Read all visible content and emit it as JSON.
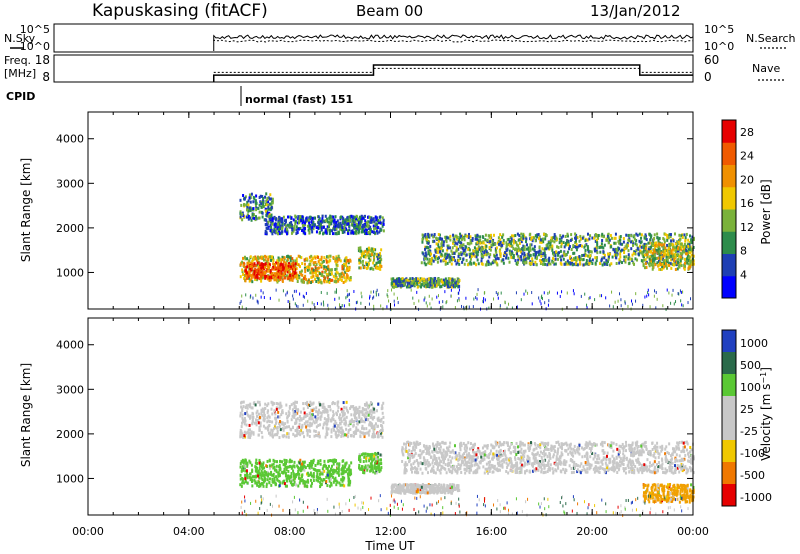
{
  "header": {
    "station": "Kapuskasing (fitACF)",
    "beam": "Beam 00",
    "date": "13/Jan/2012"
  },
  "summary_panels": {
    "nsky_label": "N.Sky",
    "nsky_ticks": [
      "10^5",
      "10^0"
    ],
    "nsearch_label": "N.Search",
    "nsearch_ticks": [
      "10^5",
      "10^0"
    ],
    "freq_label_1": "Freq.",
    "freq_label_2": "[MHz]",
    "freq_ticks": [
      "18",
      "8"
    ],
    "nave_label": "Nave",
    "nave_ticks": [
      "60",
      "0"
    ],
    "cpid_label": "CPID",
    "cpid_value": "normal (fast) 151",
    "freq_steps": [
      {
        "t": 6.0,
        "freq": 10.2
      },
      {
        "t": 12.0,
        "freq": 14.8
      },
      {
        "t": 22.0,
        "freq": 10.2
      },
      {
        "t": 24.0,
        "freq": 10.2
      }
    ],
    "nave_steps": [
      {
        "t": 6.0,
        "nave": 24
      },
      {
        "t": 12.0,
        "nave": 34
      },
      {
        "t": 22.0,
        "nave": 24
      },
      {
        "t": 24.0,
        "nave": 24
      }
    ]
  },
  "chart_data": [
    {
      "type": "heatmap",
      "name": "power",
      "xlabel": "Time UT",
      "ylabel": "Slant Range [km]",
      "x_ticks": [
        "00:00",
        "04:00",
        "08:00",
        "12:00",
        "16:00",
        "20:00",
        "00:00"
      ],
      "x_tick_values": [
        0,
        4,
        8,
        12,
        16,
        20,
        24
      ],
      "y_ticks": [
        "1000",
        "2000",
        "3000",
        "4000"
      ],
      "y_tick_values": [
        1000,
        2000,
        3000,
        4000
      ],
      "xlim": [
        0,
        24
      ],
      "ylim": [
        180,
        4600
      ],
      "colorbar_label": "Power [dB]",
      "colorbar_ticks": [
        "4",
        "8",
        "12",
        "16",
        "20",
        "24",
        "28"
      ],
      "colorbar_values": [
        4,
        8,
        12,
        16,
        20,
        24,
        28
      ],
      "colorbar_range": [
        0,
        30
      ],
      "bands": [
        {
          "t0": 6.0,
          "t1": 7.3,
          "r0": 2200,
          "r1": 2800,
          "level": 0.3
        },
        {
          "t0": 7.0,
          "t1": 11.7,
          "r0": 1900,
          "r1": 2300,
          "level": 0.25
        },
        {
          "t0": 6.0,
          "t1": 10.4,
          "r0": 800,
          "r1": 1400,
          "level": 0.55
        },
        {
          "t0": 6.2,
          "t1": 8.2,
          "r0": 900,
          "r1": 1250,
          "level": 0.85
        },
        {
          "t0": 10.7,
          "t1": 11.6,
          "r0": 1100,
          "r1": 1600,
          "level": 0.45
        },
        {
          "t0": 12.0,
          "t1": 14.7,
          "r0": 700,
          "r1": 900,
          "level": 0.35
        },
        {
          "t0": 13.2,
          "t1": 24.0,
          "r0": 1200,
          "r1": 1900,
          "level": 0.35
        },
        {
          "t0": 22.0,
          "t1": 24.0,
          "r0": 1100,
          "r1": 1700,
          "level": 0.5
        }
      ]
    },
    {
      "type": "heatmap",
      "name": "velocity",
      "xlabel": "Time UT",
      "ylabel": "Slant Range [km]",
      "x_ticks": [
        "00:00",
        "04:00",
        "08:00",
        "12:00",
        "16:00",
        "20:00",
        "00:00"
      ],
      "x_tick_values": [
        0,
        4,
        8,
        12,
        16,
        20,
        24
      ],
      "y_ticks": [
        "1000",
        "2000",
        "3000",
        "4000"
      ],
      "y_tick_values": [
        1000,
        2000,
        3000,
        4000
      ],
      "xlim": [
        0,
        24
      ],
      "ylim": [
        180,
        4600
      ],
      "colorbar_label": "Velocity [m s^-1]",
      "colorbar_ticks": [
        "1000",
        "500",
        "100",
        "25",
        "-25",
        "-100",
        "-500",
        "-1000"
      ],
      "bands": [
        {
          "t0": 6.0,
          "t1": 11.7,
          "r0": 1950,
          "r1": 2750,
          "color": "#c8c8c8"
        },
        {
          "t0": 12.4,
          "t1": 24.0,
          "r0": 1150,
          "r1": 1850,
          "color": "#c8c8c8"
        },
        {
          "t0": 6.0,
          "t1": 10.4,
          "r0": 850,
          "r1": 1450,
          "color": "#5ac834"
        },
        {
          "t0": 10.7,
          "t1": 11.6,
          "r0": 1150,
          "r1": 1600,
          "color": "#5ac834"
        },
        {
          "t0": 12.0,
          "t1": 14.7,
          "r0": 700,
          "r1": 900,
          "color": "#c8c8c8"
        },
        {
          "t0": 22.0,
          "t1": 24.0,
          "r0": 500,
          "r1": 900,
          "color": "#f0a000"
        }
      ]
    }
  ],
  "colors": {
    "power_scale": [
      "#0000ff",
      "#1e3fb4",
      "#2d8c4b",
      "#7ab23a",
      "#f0c800",
      "#f09000",
      "#f05a00",
      "#e60000"
    ],
    "velocity_scale": [
      "#2040c0",
      "#2a6a4a",
      "#5ac834",
      "#c8c8c8",
      "#c8c8c8",
      "#f0c800",
      "#f07800",
      "#e60000"
    ]
  }
}
